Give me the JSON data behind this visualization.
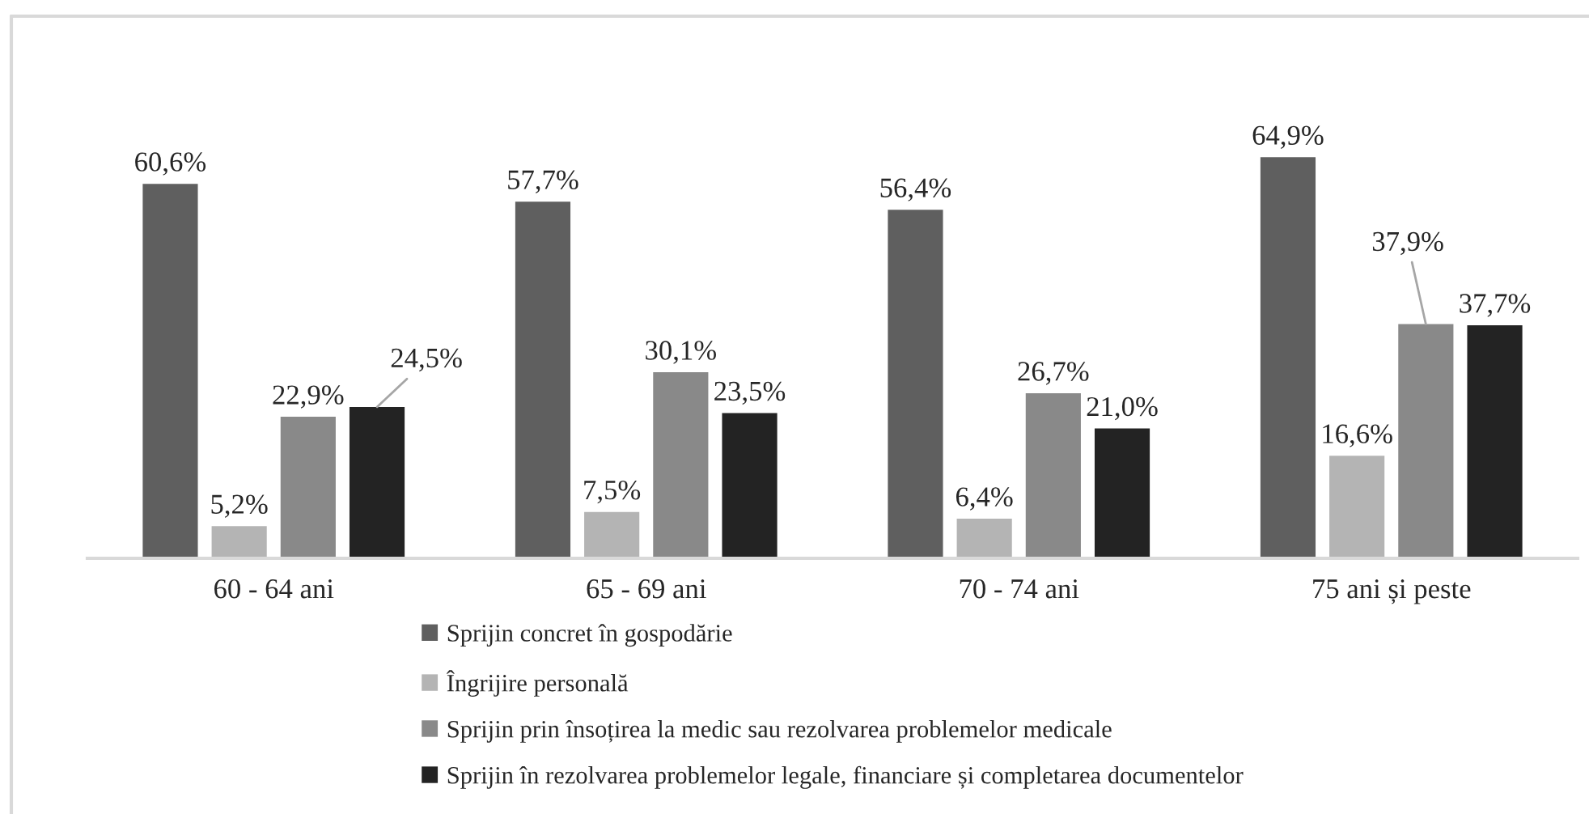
{
  "chart_data": {
    "type": "bar",
    "categories": [
      "60 - 64 ani",
      "65 - 69 ani",
      "70 - 74 ani",
      "75 ani și peste"
    ],
    "series": [
      {
        "name": "Sprijin concret în gospodărie",
        "color": "#5f5f5f",
        "values": [
          60.6,
          57.7,
          56.4,
          64.9
        ],
        "value_labels": [
          "60,6%",
          "57,7%",
          "56,4%",
          "64,9%"
        ]
      },
      {
        "name": "Îngrijire personală",
        "color": "#b4b4b4",
        "values": [
          5.2,
          7.5,
          6.4,
          16.6
        ],
        "value_labels": [
          "5,2%",
          "7,5%",
          "6,4%",
          "16,6%"
        ]
      },
      {
        "name": "Sprijin prin însoțirea la medic sau rezolvarea problemelor medicale",
        "color": "#898989",
        "values": [
          22.9,
          30.1,
          26.7,
          37.9
        ],
        "value_labels": [
          "22,9%",
          "30,1%",
          "26,7%",
          "37,9%"
        ]
      },
      {
        "name": "Sprijin în rezolvarea problemelor legale, financiare și completarea documentelor",
        "color": "#232323",
        "values": [
          24.5,
          23.5,
          21.0,
          37.7
        ],
        "value_labels": [
          "24,5%",
          "23,5%",
          "21,0%",
          "37,7%"
        ]
      }
    ],
    "legend": "bottom"
  }
}
